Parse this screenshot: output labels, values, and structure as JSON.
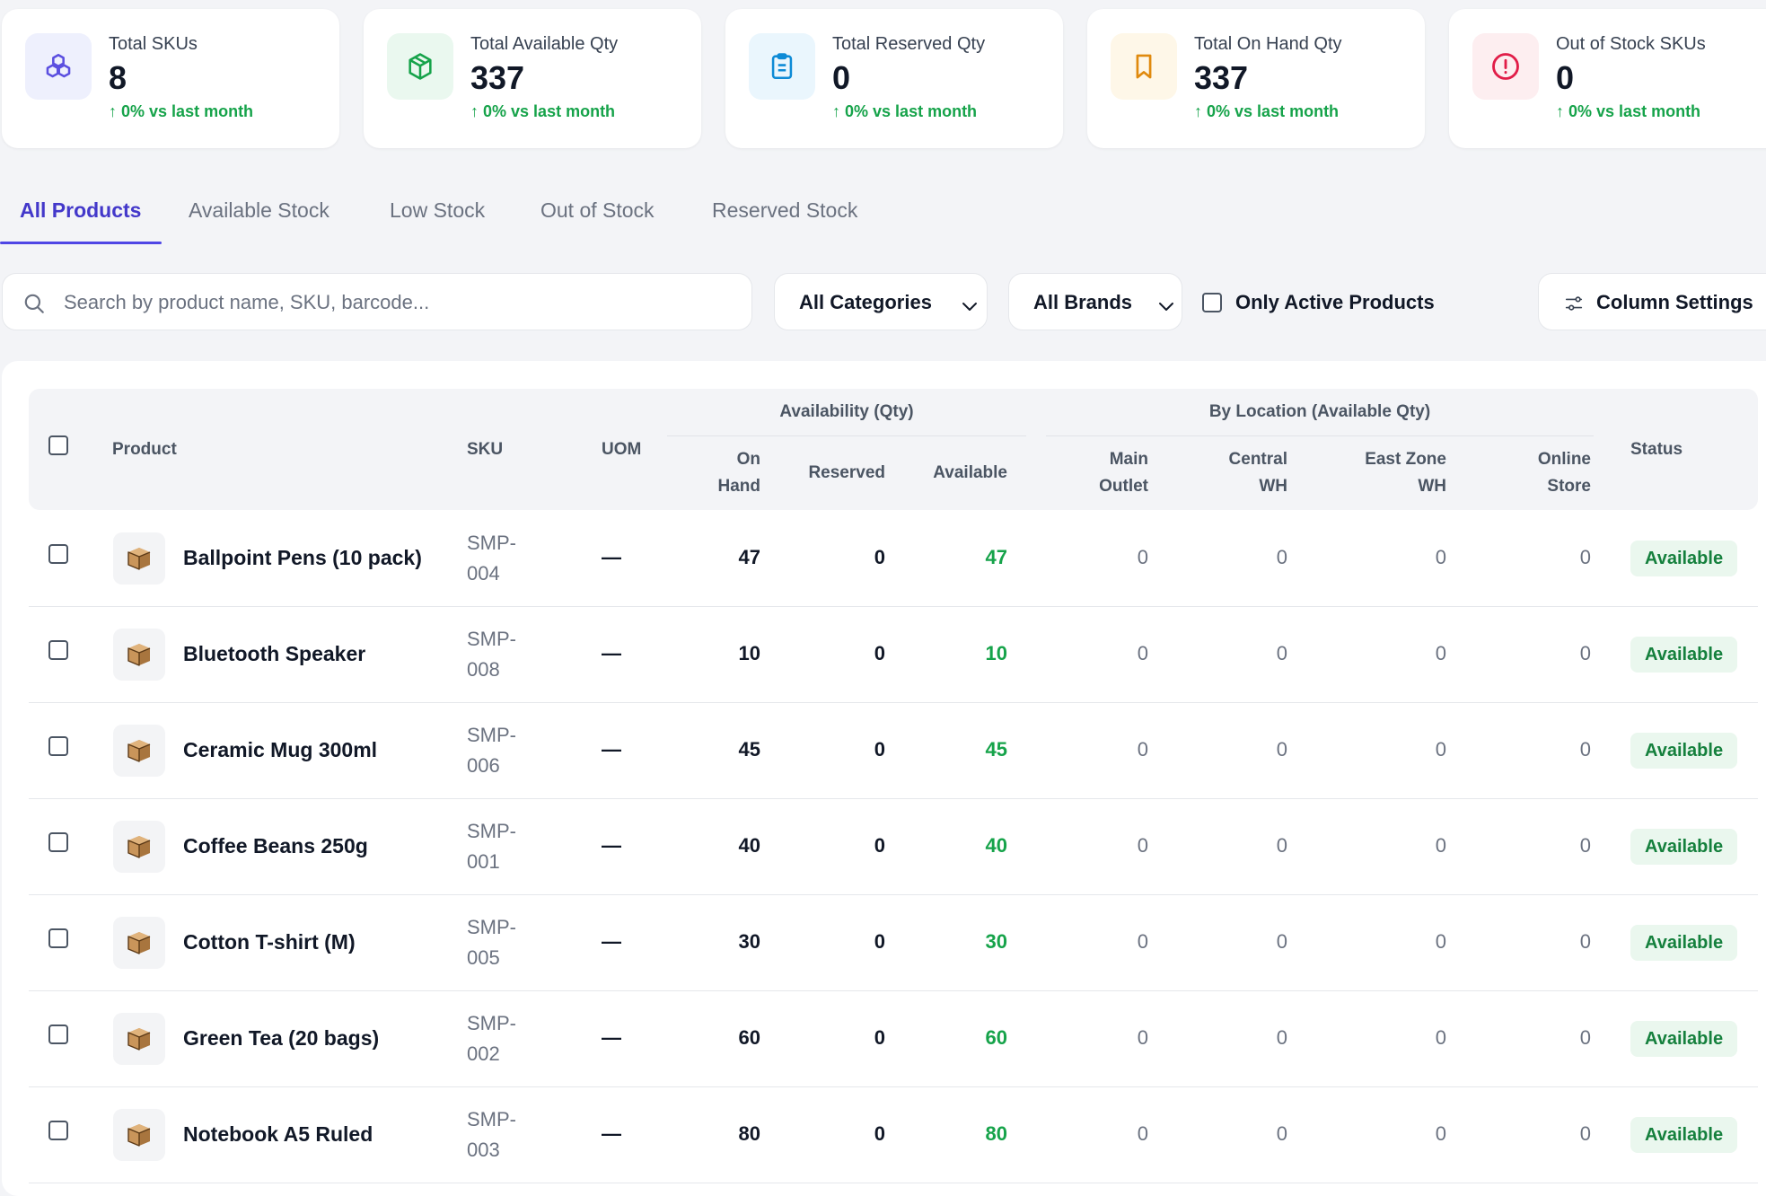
{
  "stats": [
    {
      "title": "Total SKUs",
      "value": "8",
      "delta": "0% vs last month",
      "icon": "cubes-icon",
      "color": "#5b4fe0",
      "bg": "#eef0fd"
    },
    {
      "title": "Total Available Qty",
      "value": "337",
      "delta": "0% vs last month",
      "icon": "package-icon",
      "color": "#16a34a",
      "bg": "#eaf8ef"
    },
    {
      "title": "Total Reserved Qty",
      "value": "0",
      "delta": "0% vs last month",
      "icon": "clipboard-icon",
      "color": "#0e8bd6",
      "bg": "#eaf6fd"
    },
    {
      "title": "Total On Hand Qty",
      "value": "337",
      "delta": "0% vs last month",
      "icon": "bookmark-icon",
      "color": "#e08a0e",
      "bg": "#fef7e8"
    },
    {
      "title": "Out of Stock SKUs",
      "value": "0",
      "delta": "0% vs last month",
      "icon": "alert-circle-icon",
      "color": "#e11d48",
      "bg": "#fdeef0"
    }
  ],
  "tabs": [
    "All Products",
    "Available Stock",
    "Low Stock",
    "Out of Stock",
    "Reserved Stock"
  ],
  "filters": {
    "search_placeholder": "Search by product name, SKU, barcode...",
    "categories": "All Categories",
    "brands": "All Brands",
    "only_active": "Only Active Products",
    "column_settings": "Column Settings"
  },
  "table": {
    "headers": {
      "product": "Product",
      "sku": "SKU",
      "uom": "UOM",
      "availability_group": "Availability (Qty)",
      "location_group": "By Location (Available Qty)",
      "on_hand_1": "On",
      "on_hand_2": "Hand",
      "reserved": "Reserved",
      "available": "Available",
      "main_1": "Main",
      "main_2": "Outlet",
      "central_1": "Central",
      "central_2": "WH",
      "east_1": "East Zone",
      "east_2": "WH",
      "online_1": "Online",
      "online_2": "Store",
      "status": "Status"
    },
    "rows": [
      {
        "product": "Ballpoint Pens (10 pack)",
        "sku": "SMP-004",
        "uom": "—",
        "on_hand": "47",
        "reserved": "0",
        "available": "47",
        "main": "0",
        "central": "0",
        "east": "0",
        "online": "0",
        "status": "Available"
      },
      {
        "product": "Bluetooth Speaker",
        "sku": "SMP-008",
        "uom": "—",
        "on_hand": "10",
        "reserved": "0",
        "available": "10",
        "main": "0",
        "central": "0",
        "east": "0",
        "online": "0",
        "status": "Available"
      },
      {
        "product": "Ceramic Mug 300ml",
        "sku": "SMP-006",
        "uom": "—",
        "on_hand": "45",
        "reserved": "0",
        "available": "45",
        "main": "0",
        "central": "0",
        "east": "0",
        "online": "0",
        "status": "Available"
      },
      {
        "product": "Coffee Beans 250g",
        "sku": "SMP-001",
        "uom": "—",
        "on_hand": "40",
        "reserved": "0",
        "available": "40",
        "main": "0",
        "central": "0",
        "east": "0",
        "online": "0",
        "status": "Available"
      },
      {
        "product": "Cotton T-shirt (M)",
        "sku": "SMP-005",
        "uom": "—",
        "on_hand": "30",
        "reserved": "0",
        "available": "30",
        "main": "0",
        "central": "0",
        "east": "0",
        "online": "0",
        "status": "Available"
      },
      {
        "product": "Green Tea (20 bags)",
        "sku": "SMP-002",
        "uom": "—",
        "on_hand": "60",
        "reserved": "0",
        "available": "60",
        "main": "0",
        "central": "0",
        "east": "0",
        "online": "0",
        "status": "Available"
      },
      {
        "product": "Notebook A5 Ruled",
        "sku": "SMP-003",
        "uom": "—",
        "on_hand": "80",
        "reserved": "0",
        "available": "80",
        "main": "0",
        "central": "0",
        "east": "0",
        "online": "0",
        "status": "Available"
      }
    ]
  }
}
